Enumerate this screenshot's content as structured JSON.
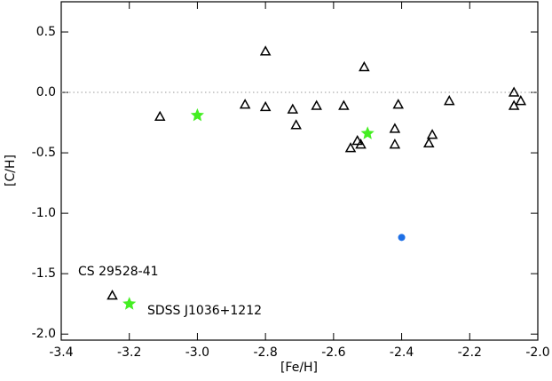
{
  "chart_data": {
    "type": "scatter",
    "x_label": "[Fe/H]",
    "y_label": "[C/H]",
    "xlim": [
      -3.4,
      -2.0
    ],
    "ylim": [
      -2.05,
      0.75
    ],
    "xticks": [
      -3.4,
      -3.2,
      {
        "value": -3.0,
        "label": "-3.0"
      },
      -2.8,
      -2.6,
      -2.4,
      -2.2,
      {
        "value": -2.0,
        "label": "-2.0"
      }
    ],
    "yticks": [
      {
        "value": -2.0,
        "label": "-2.0"
      },
      -1.5,
      {
        "value": -1.0,
        "label": "-1.0"
      },
      -0.5,
      {
        "value": 0,
        "label": "0.0"
      },
      0.5
    ],
    "reference_line": 0,
    "series": [
      {
        "marker": "triangle",
        "color": "#000000",
        "x": [
          -3.11,
          -2.86,
          -2.8,
          -2.8,
          -2.72,
          -2.71,
          -2.65,
          -2.57,
          -2.51,
          -2.55,
          -2.53,
          -2.52,
          -2.42,
          -2.41,
          -2.42,
          -2.32,
          -2.31,
          -2.26,
          -2.07,
          -2.05,
          -2.07,
          -3.25
        ],
        "values": [
          -0.2,
          -0.1,
          0.34,
          -0.12,
          -0.14,
          -0.27,
          -0.11,
          -0.11,
          0.21,
          -0.46,
          -0.4,
          -0.43,
          -0.3,
          -0.1,
          -0.43,
          -0.42,
          -0.35,
          -0.07,
          0.0,
          -0.07,
          -0.11,
          -1.68
        ]
      },
      {
        "marker": "star",
        "color": "#44ee22",
        "x": [
          -3.0,
          -2.5,
          -3.2
        ],
        "values": [
          -0.19,
          -0.34,
          -1.75
        ]
      },
      {
        "marker": "circle",
        "color": "#1e6fe6",
        "x": [
          -2.4
        ],
        "values": [
          -1.2
        ]
      }
    ],
    "annotations": [
      {
        "text": "CS 29528-41",
        "color": "#000000"
      },
      {
        "text": "SDSS J1036+1212",
        "color": "#44ee22"
      }
    ]
  }
}
